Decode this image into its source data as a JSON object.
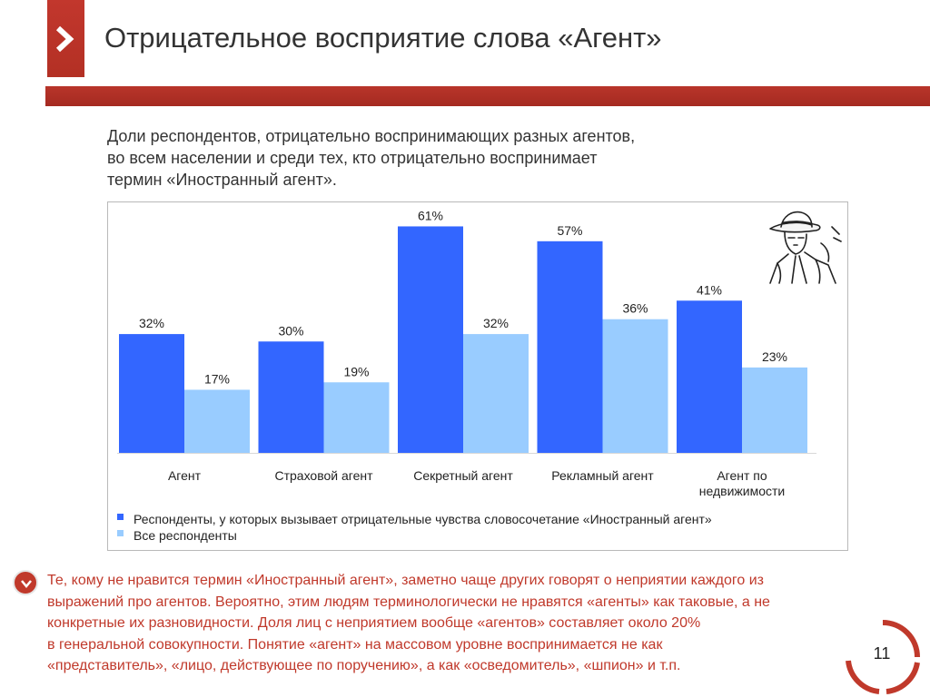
{
  "slide": {
    "title": "Отрицательное восприятие слова «Агент»",
    "subtitle_lines": [
      "Доли респондентов, отрицательно воспринимающих разных агентов,",
      "во всем населении и среди тех, кто отрицательно воспринимает",
      "термин «Иностранный агент»."
    ],
    "footer_lines": [
      "Те, кому не нравится термин «Иностранный агент», заметно чаще других говорят о неприятии каждого из",
      "выражений про агентов. Вероятно, этим людям терминологически не нравятся «агенты» как таковые, а не",
      "конкретные их разновидности. Доля лиц с неприятием вообще «агентов» составляет около 20%",
      "в генеральной совокупности. Понятие «агент» на массовом уровне воспринимается не как",
      "«представитель», «лицо, действующее по поручению», а как «осведомитель», «шпион» и т.п."
    ],
    "page_number": "11",
    "colors": {
      "accent": "#c0392b",
      "bar_dark": "#3366ff",
      "bar_light": "#99ccff"
    }
  },
  "chart_data": {
    "type": "bar",
    "title": "Доли респондентов, отрицательно воспринимающих разных агентов",
    "categories": [
      [
        "Агент"
      ],
      [
        "Страховой агент"
      ],
      [
        "Секретный агент"
      ],
      [
        "Рекламный агент"
      ],
      [
        "Агент по",
        "недвижимости"
      ]
    ],
    "series": [
      {
        "name": "Респонденты, у которых вызывает отрицательные чувства словосочетание «Иностранный агент»",
        "color": "#3366ff",
        "values": [
          32,
          30,
          61,
          57,
          41
        ]
      },
      {
        "name": "Все респонденты",
        "color": "#99ccff",
        "values": [
          17,
          19,
          32,
          36,
          23
        ]
      }
    ],
    "value_suffix": "%",
    "ylim": [
      0,
      66
    ],
    "grid": false,
    "legend_position": "bottom-left"
  }
}
